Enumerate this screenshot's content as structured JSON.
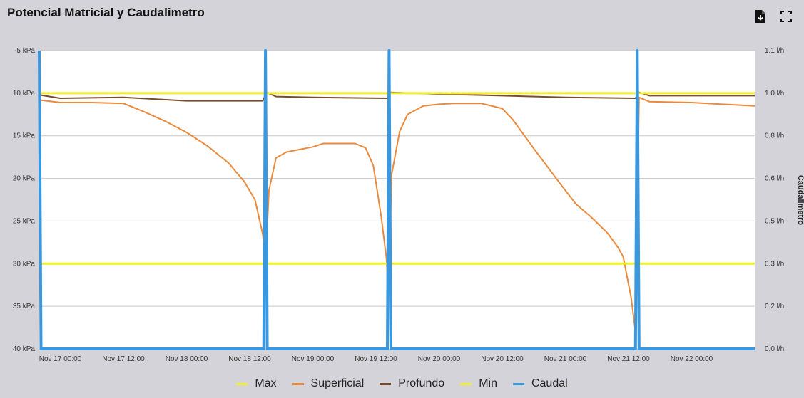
{
  "header": {
    "title": "Potencial Matricial y Caudalimetro",
    "icons": [
      "download-pdf-icon",
      "fullscreen-icon"
    ]
  },
  "colors": {
    "Max": "#f2ee2e",
    "Superficial": "#e98a3d",
    "Profundo": "#7a4c2e",
    "Min": "#f2ee2e",
    "Caudal": "#3a98e0",
    "grid": "#c8c8c8",
    "plot_bg": "#ffffff"
  },
  "legend": [
    {
      "name": "Max",
      "color": "#f2ee2e"
    },
    {
      "name": "Superficial",
      "color": "#e98a3d"
    },
    {
      "name": "Profundo",
      "color": "#7a4c2e"
    },
    {
      "name": "Min",
      "color": "#f2ee2e"
    },
    {
      "name": "Caudal",
      "color": "#3a98e0"
    }
  ],
  "chart_data": {
    "type": "line",
    "title": "Potencial Matricial y Caudalimetro",
    "x_range": [
      "Nov 16 20:00",
      "Nov 22 12:00"
    ],
    "x_ticks": [
      "Nov 17 00:00",
      "Nov 17 12:00",
      "Nov 18 00:00",
      "Nov 18 12:00",
      "Nov 19 00:00",
      "Nov 19 12:00",
      "Nov 20 00:00",
      "Nov 20 12:00",
      "Nov 21 00:00",
      "Nov 21 12:00",
      "Nov 22 00:00"
    ],
    "y_left": {
      "label": "",
      "ylim": [
        -5,
        -40
      ],
      "ticks": [
        "-5 kPa",
        "10 kPa",
        "15 kPa",
        "20 kPa",
        "25 kPa",
        "30 kPa",
        "35 kPa",
        "40 kPa"
      ]
    },
    "y_right": {
      "label": "Caudalimetro",
      "ylim": [
        0,
        1.1
      ],
      "ticks": [
        "1.1 l/h",
        "1.0 l/h",
        "0.8 l/h",
        "0.6 l/h",
        "0.5 l/h",
        "0.3 l/h",
        "0.2 l/h",
        "0.0 l/h"
      ]
    },
    "grid": true,
    "legend_position": "bottom",
    "series": [
      {
        "name": "Max",
        "axis": "left",
        "points": [
          [
            "Nov 16 20:00",
            -10
          ],
          [
            "Nov 22 12:00",
            -10
          ]
        ]
      },
      {
        "name": "Min",
        "axis": "left",
        "points": [
          [
            "Nov 16 20:00",
            -30
          ],
          [
            "Nov 22 12:00",
            -30
          ]
        ]
      },
      {
        "name": "Superficial",
        "axis": "left",
        "points": [
          [
            "Nov 16 20:00",
            -10.8
          ],
          [
            "Nov 17 00:00",
            -11.1
          ],
          [
            "Nov 17 06:00",
            -11.1
          ],
          [
            "Nov 17 12:00",
            -11.2
          ],
          [
            "Nov 17 16:00",
            -12.2
          ],
          [
            "Nov 17 20:00",
            -13.3
          ],
          [
            "Nov 18 00:00",
            -14.6
          ],
          [
            "Nov 18 04:00",
            -16.2
          ],
          [
            "Nov 18 08:00",
            -18.2
          ],
          [
            "Nov 18 11:00",
            -20.4
          ],
          [
            "Nov 18 13:00",
            -22.5
          ],
          [
            "Nov 18 14:30",
            -26.6
          ],
          [
            "Nov 18 15:00",
            -30.0
          ],
          [
            "Nov 18 15:40",
            -21.4
          ],
          [
            "Nov 18 17:00",
            -17.6
          ],
          [
            "Nov 18 19:00",
            -16.9
          ],
          [
            "Nov 19 00:00",
            -16.3
          ],
          [
            "Nov 19 02:00",
            -15.9
          ],
          [
            "Nov 19 05:00",
            -15.9
          ],
          [
            "Nov 19 08:00",
            -15.9
          ],
          [
            "Nov 19 10:00",
            -16.4
          ],
          [
            "Nov 19 11:30",
            -18.5
          ],
          [
            "Nov 19 13:00",
            -24.5
          ],
          [
            "Nov 19 14:00",
            -29.5
          ],
          [
            "Nov 19 14:20",
            -33.5
          ],
          [
            "Nov 19 15:00",
            -19.5
          ],
          [
            "Nov 19 16:30",
            -14.5
          ],
          [
            "Nov 19 18:00",
            -12.5
          ],
          [
            "Nov 19 21:00",
            -11.5
          ],
          [
            "Nov 20 00:00",
            -11.3
          ],
          [
            "Nov 20 03:00",
            -11.2
          ],
          [
            "Nov 20 08:00",
            -11.2
          ],
          [
            "Nov 20 12:00",
            -11.8
          ],
          [
            "Nov 20 14:00",
            -13.1
          ],
          [
            "Nov 20 18:00",
            -16.5
          ],
          [
            "Nov 20 23:00",
            -20.6
          ],
          [
            "Nov 21 02:00",
            -23.0
          ],
          [
            "Nov 21 05:00",
            -24.6
          ],
          [
            "Nov 21 08:00",
            -26.4
          ],
          [
            "Nov 21 10:00",
            -28.1
          ],
          [
            "Nov 21 11:00",
            -29.2
          ],
          [
            "Nov 21 12:30",
            -34.0
          ],
          [
            "Nov 21 13:20",
            -38.0
          ],
          [
            "Nov 21 14:00",
            -10.5
          ],
          [
            "Nov 21 16:00",
            -11.0
          ],
          [
            "Nov 22 00:00",
            -11.1
          ],
          [
            "Nov 22 12:00",
            -11.5
          ]
        ]
      },
      {
        "name": "Profundo",
        "axis": "left",
        "points": [
          [
            "Nov 16 20:00",
            -10.2
          ],
          [
            "Nov 17 00:00",
            -10.6
          ],
          [
            "Nov 17 12:00",
            -10.5
          ],
          [
            "Nov 18 00:00",
            -10.9
          ],
          [
            "Nov 18 14:30",
            -10.9
          ],
          [
            "Nov 18 15:10",
            -9.9
          ],
          [
            "Nov 18 17:00",
            -10.4
          ],
          [
            "Nov 19 00:00",
            -10.5
          ],
          [
            "Nov 19 14:10",
            -10.6
          ],
          [
            "Nov 19 14:40",
            -9.9
          ],
          [
            "Nov 20 00:00",
            -10.1
          ],
          [
            "Nov 20 12:00",
            -10.3
          ],
          [
            "Nov 21 00:00",
            -10.5
          ],
          [
            "Nov 21 13:20",
            -10.6
          ],
          [
            "Nov 21 14:00",
            -9.9
          ],
          [
            "Nov 21 16:00",
            -10.3
          ],
          [
            "Nov 22 12:00",
            -10.3
          ]
        ]
      },
      {
        "name": "Caudal",
        "axis": "right",
        "points": [
          [
            "Nov 16 20:00",
            1.1
          ],
          [
            "Nov 16 20:20",
            0.0
          ],
          [
            "Nov 18 14:40",
            0.0
          ],
          [
            "Nov 18 15:00",
            1.1
          ],
          [
            "Nov 18 15:20",
            0.0
          ],
          [
            "Nov 19 14:10",
            0.0
          ],
          [
            "Nov 19 14:30",
            1.1
          ],
          [
            "Nov 19 14:50",
            0.0
          ],
          [
            "Nov 21 13:20",
            0.0
          ],
          [
            "Nov 21 13:40",
            1.1
          ],
          [
            "Nov 21 14:00",
            0.0
          ],
          [
            "Nov 22 12:00",
            0.0
          ]
        ]
      }
    ]
  }
}
